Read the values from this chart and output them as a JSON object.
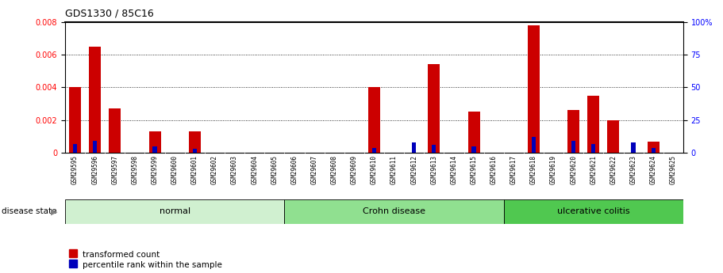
{
  "title": "GDS1330 / 85C16",
  "samples": [
    "GSM29595",
    "GSM29596",
    "GSM29597",
    "GSM29598",
    "GSM29599",
    "GSM29600",
    "GSM29601",
    "GSM29602",
    "GSM29603",
    "GSM29604",
    "GSM29605",
    "GSM29606",
    "GSM29607",
    "GSM29608",
    "GSM29609",
    "GSM29610",
    "GSM29611",
    "GSM29612",
    "GSM29613",
    "GSM29614",
    "GSM29615",
    "GSM29616",
    "GSM29617",
    "GSM29618",
    "GSM29619",
    "GSM29620",
    "GSM29621",
    "GSM29622",
    "GSM29623",
    "GSM29624",
    "GSM29625"
  ],
  "transformed_count": [
    0.004,
    0.0065,
    0.0027,
    0.0,
    0.0013,
    0.0,
    0.0013,
    0.0,
    0.0,
    0.0,
    0.0,
    0.0,
    0.0,
    0.0,
    0.0,
    0.004,
    0.0,
    0.0,
    0.0054,
    0.0,
    0.0025,
    0.0,
    0.0,
    0.0078,
    0.0,
    0.0026,
    0.0035,
    0.002,
    0.0,
    0.0007,
    0.0
  ],
  "percentile_rank_pct": [
    7,
    9,
    0,
    0,
    5,
    0,
    3,
    0,
    0,
    0,
    0,
    0,
    0,
    0,
    0,
    4,
    0,
    8,
    6,
    0,
    5,
    0,
    0,
    12,
    0,
    9,
    7,
    0,
    8,
    4,
    0
  ],
  "groups": [
    {
      "label": "normal",
      "start": 0,
      "end": 11,
      "color": "#d0f0d0"
    },
    {
      "label": "Crohn disease",
      "start": 11,
      "end": 22,
      "color": "#90e090"
    },
    {
      "label": "ulcerative colitis",
      "start": 22,
      "end": 31,
      "color": "#50c850"
    }
  ],
  "ylim_left": [
    0,
    0.008
  ],
  "ylim_right": [
    0,
    100
  ],
  "yticks_left": [
    0,
    0.002,
    0.004,
    0.006,
    0.008
  ],
  "yticks_right": [
    0,
    25,
    50,
    75,
    100
  ],
  "bar_color_red": "#cc0000",
  "bar_color_blue": "#0000bb",
  "bg_color": "#ffffff",
  "disease_label": "disease state"
}
